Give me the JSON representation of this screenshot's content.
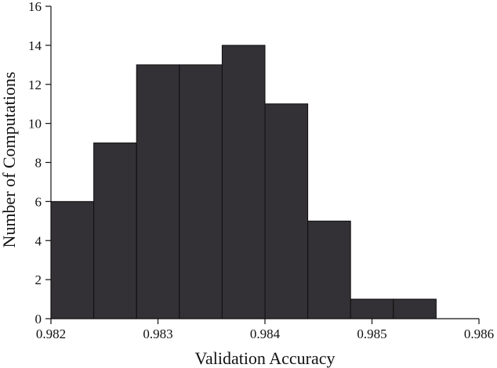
{
  "chart_data": {
    "type": "bar",
    "subtype": "histogram",
    "xlabel": "Validation Accuracy",
    "ylabel": "Number of Computations",
    "xlim": [
      0.982,
      0.986
    ],
    "ylim": [
      0,
      16
    ],
    "xticks": [
      0.982,
      0.983,
      0.984,
      0.985,
      0.986
    ],
    "xtick_labels": [
      "0.982",
      "0.983",
      "0.984",
      "0.985",
      "0.986"
    ],
    "yticks": [
      0,
      2,
      4,
      6,
      8,
      10,
      12,
      14,
      16
    ],
    "ytick_labels": [
      "0",
      "2",
      "4",
      "6",
      "8",
      "10",
      "12",
      "14",
      "16"
    ],
    "bin_edges": [
      0.982,
      0.9824,
      0.9828,
      0.9832,
      0.9836,
      0.984,
      0.9844,
      0.9848,
      0.9852,
      0.9856
    ],
    "values": [
      6,
      9,
      13,
      13,
      14,
      11,
      5,
      1,
      1
    ],
    "grid": false,
    "bar_color": "#333135"
  }
}
